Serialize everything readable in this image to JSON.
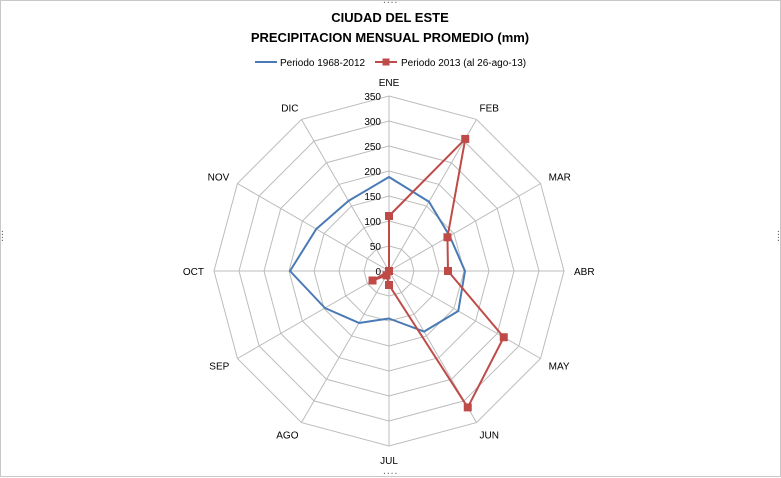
{
  "chart_data": {
    "type": "radar",
    "title": "CIUDAD DEL ESTE",
    "subtitle": "PRECIPITACION MENSUAL PROMEDIO  (mm)",
    "categories": [
      "ENE",
      "FEB",
      "MAR",
      "ABR",
      "MAY",
      "JUN",
      "JUL",
      "AGO",
      "SEP",
      "OCT",
      "NOV",
      "DIC"
    ],
    "r_ticks": [
      "0",
      "50",
      "100",
      "150",
      "200",
      "250",
      "300",
      "350"
    ],
    "rlim": [
      0,
      350
    ],
    "grid": true,
    "legend_position": "top",
    "series": [
      {
        "name": "Periodo 1968-2012",
        "color": "#4a7ab5",
        "marker": "none",
        "values": [
          188,
          160,
          140,
          152,
          160,
          140,
          95,
          120,
          148,
          198,
          168,
          162
        ]
      },
      {
        "name": "Periodo 2013 (al 26-ago-13)",
        "color": "#be4b48",
        "marker": "square",
        "values": [
          110,
          305,
          135,
          118,
          265,
          315,
          28,
          10,
          38,
          0,
          0,
          0
        ]
      }
    ]
  }
}
